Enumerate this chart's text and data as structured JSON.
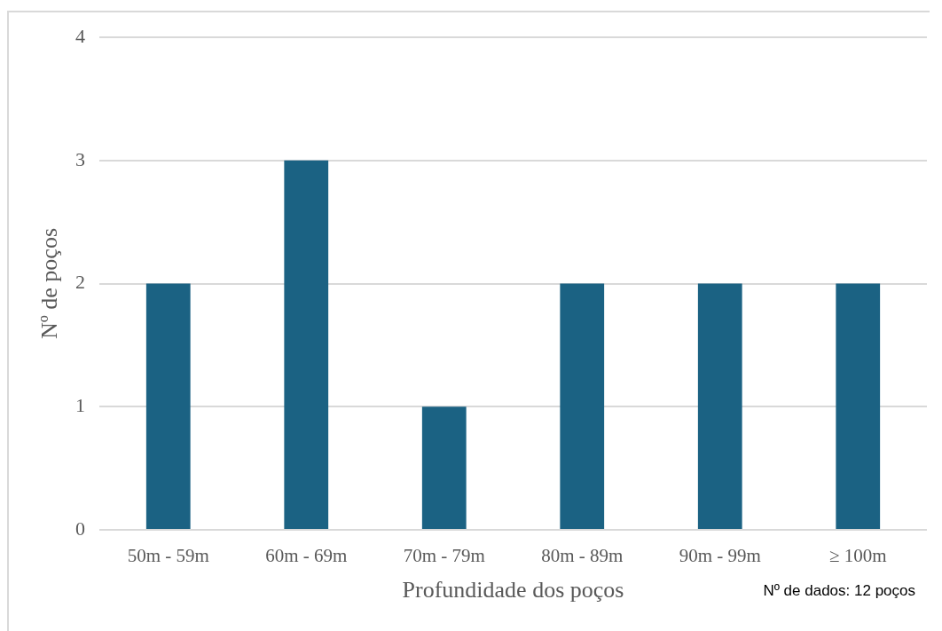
{
  "chart_data": {
    "type": "bar",
    "categories": [
      "50m - 59m",
      "60m - 69m",
      "70m - 79m",
      "80m - 89m",
      "90m - 99m",
      "≥ 100m"
    ],
    "values": [
      2,
      3,
      1,
      2,
      2,
      2
    ],
    "color": "#1b6283",
    "xlabel": "Profundidade dos poços",
    "ylabel": "Nº de poços",
    "ylim": [
      0,
      4
    ],
    "yticks": [
      0,
      1,
      2,
      3,
      4
    ],
    "grid": "y",
    "annotations": [
      "Nº de dados: 12 poços"
    ]
  }
}
